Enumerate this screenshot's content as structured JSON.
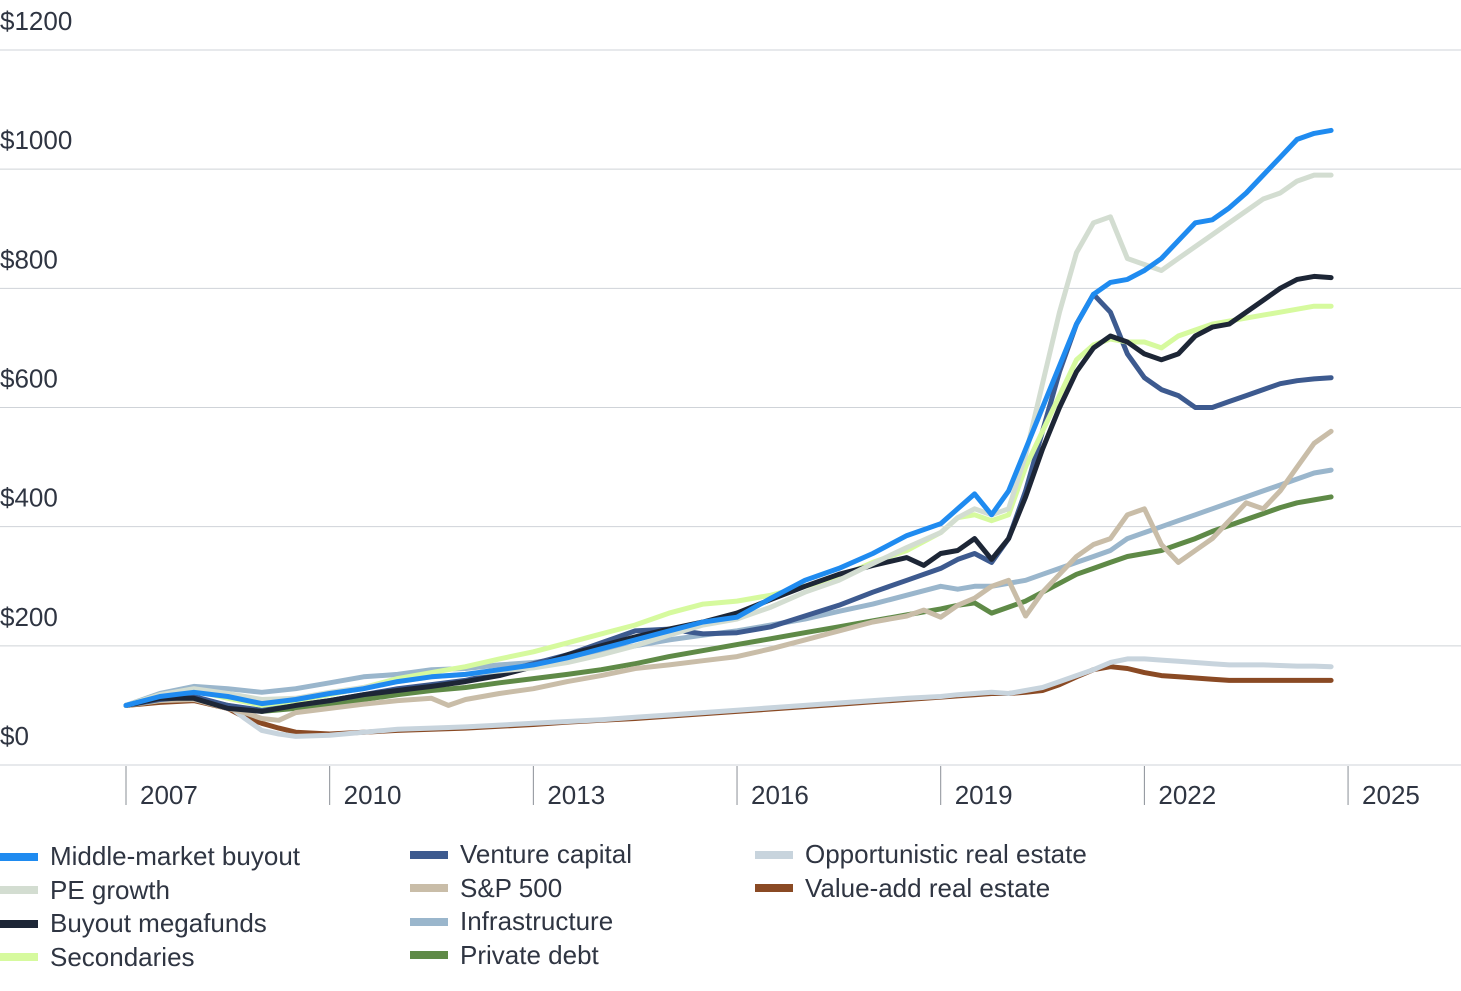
{
  "chart_data": {
    "type": "line",
    "title": "",
    "xlabel": "",
    "ylabel": "",
    "ylim": [
      0,
      1200
    ],
    "xlim": [
      2006.5,
      2025.0
    ],
    "y_ticks": [
      "$0",
      "$200",
      "$400",
      "$600",
      "$800",
      "$1000",
      "$1200"
    ],
    "y_tick_values": [
      0,
      200,
      400,
      600,
      800,
      1000,
      1200
    ],
    "x_ticks": [
      "2007",
      "2010",
      "2013",
      "2016",
      "2019",
      "2022",
      "2025"
    ],
    "x_tick_values": [
      2006.5,
      2009.5,
      2012.5,
      2015.5,
      2018.5,
      2021.5,
      2024.5
    ],
    "grid": "horizontal",
    "legend_position": "bottom",
    "series": [
      {
        "name": "Middle-market buyout",
        "color": "#1f8bf0",
        "x": [
          2006.5,
          2007,
          2007.5,
          2008,
          2008.5,
          2009,
          2009.5,
          2010,
          2010.5,
          2011,
          2011.5,
          2012,
          2012.5,
          2013,
          2013.5,
          2014,
          2014.5,
          2015,
          2015.5,
          2016,
          2016.5,
          2017,
          2017.5,
          2018,
          2018.5,
          2018.75,
          2019,
          2019.25,
          2019.5,
          2019.75,
          2020,
          2020.25,
          2020.5,
          2020.75,
          2021,
          2021.25,
          2021.5,
          2021.75,
          2022,
          2022.25,
          2022.5,
          2022.75,
          2023,
          2023.25,
          2023.5,
          2023.75,
          2024,
          2024.25
        ],
        "values": [
          100,
          115,
          122,
          115,
          103,
          110,
          120,
          128,
          140,
          148,
          152,
          160,
          168,
          180,
          195,
          210,
          225,
          240,
          248,
          280,
          310,
          330,
          355,
          385,
          405,
          430,
          455,
          420,
          460,
          530,
          600,
          670,
          740,
          790,
          810,
          815,
          830,
          850,
          880,
          910,
          915,
          935,
          960,
          990,
          1020,
          1050,
          1060,
          1065
        ]
      },
      {
        "name": "PE growth",
        "color": "#d3ddd1",
        "x": [
          2006.5,
          2007,
          2007.5,
          2008,
          2008.5,
          2009,
          2009.5,
          2010,
          2010.5,
          2011,
          2011.5,
          2012,
          2012.5,
          2013,
          2013.5,
          2014,
          2014.5,
          2015,
          2015.5,
          2016,
          2016.5,
          2017,
          2017.5,
          2018,
          2018.5,
          2018.75,
          2019,
          2019.25,
          2019.5,
          2019.75,
          2020,
          2020.25,
          2020.5,
          2020.75,
          2021,
          2021.25,
          2021.5,
          2021.75,
          2022,
          2022.25,
          2022.5,
          2022.75,
          2023,
          2023.25,
          2023.5,
          2023.75,
          2024,
          2024.25
        ],
        "values": [
          100,
          118,
          128,
          120,
          110,
          112,
          122,
          130,
          140,
          148,
          152,
          158,
          163,
          172,
          185,
          200,
          218,
          235,
          245,
          265,
          290,
          310,
          338,
          365,
          390,
          415,
          430,
          420,
          430,
          520,
          640,
          760,
          860,
          910,
          920,
          850,
          840,
          830,
          850,
          870,
          890,
          910,
          930,
          950,
          960,
          980,
          990,
          990
        ]
      },
      {
        "name": "Buyout megafunds",
        "color": "#1d2636",
        "x": [
          2006.5,
          2007,
          2007.5,
          2008,
          2008.5,
          2009,
          2009.5,
          2010,
          2010.5,
          2011,
          2011.5,
          2012,
          2012.5,
          2013,
          2013.5,
          2014,
          2014.5,
          2015,
          2015.5,
          2016,
          2016.5,
          2017,
          2017.5,
          2018,
          2018.25,
          2018.5,
          2018.75,
          2019,
          2019.25,
          2019.5,
          2019.75,
          2020,
          2020.25,
          2020.5,
          2020.75,
          2021,
          2021.25,
          2021.5,
          2021.75,
          2022,
          2022.25,
          2022.5,
          2022.75,
          2023,
          2023.25,
          2023.5,
          2023.75,
          2024,
          2024.25
        ],
        "values": [
          100,
          112,
          112,
          95,
          90,
          100,
          108,
          118,
          125,
          132,
          140,
          150,
          165,
          185,
          200,
          215,
          228,
          240,
          255,
          278,
          300,
          320,
          335,
          348,
          335,
          355,
          360,
          380,
          345,
          380,
          450,
          530,
          600,
          660,
          700,
          720,
          710,
          690,
          680,
          690,
          720,
          735,
          740,
          760,
          780,
          800,
          815,
          820,
          818
        ]
      },
      {
        "name": "Secondaries",
        "color": "#d6fa9e",
        "x": [
          2006.5,
          2007,
          2007.5,
          2008,
          2008.5,
          2009,
          2009.5,
          2010,
          2010.5,
          2011,
          2011.5,
          2012,
          2012.5,
          2013,
          2013.5,
          2014,
          2014.5,
          2015,
          2015.5,
          2016,
          2016.5,
          2017,
          2017.5,
          2018,
          2018.5,
          2018.75,
          2019,
          2019.25,
          2019.5,
          2019.75,
          2020,
          2020.25,
          2020.5,
          2020.75,
          2021,
          2021.25,
          2021.5,
          2021.75,
          2022,
          2022.25,
          2022.5,
          2022.75,
          2023,
          2023.25,
          2023.5,
          2023.75,
          2024,
          2024.25
        ],
        "values": [
          100,
          118,
          125,
          112,
          100,
          108,
          118,
          130,
          145,
          155,
          165,
          178,
          190,
          205,
          220,
          235,
          255,
          270,
          275,
          285,
          300,
          315,
          340,
          360,
          390,
          415,
          420,
          410,
          420,
          500,
          560,
          620,
          680,
          705,
          715,
          710,
          710,
          700,
          720,
          730,
          740,
          745,
          750,
          755,
          760,
          765,
          770,
          770
        ]
      },
      {
        "name": "Venture capital",
        "color": "#3d5a8f",
        "x": [
          2006.5,
          2007,
          2007.5,
          2008,
          2008.5,
          2009,
          2009.5,
          2010,
          2010.5,
          2011,
          2011.5,
          2012,
          2012.5,
          2013,
          2013.5,
          2014,
          2014.5,
          2015,
          2015.5,
          2016,
          2016.5,
          2017,
          2017.5,
          2018,
          2018.5,
          2018.75,
          2019,
          2019.25,
          2019.5,
          2019.75,
          2020,
          2020.25,
          2020.5,
          2020.75,
          2021,
          2021.25,
          2021.5,
          2021.75,
          2022,
          2022.25,
          2022.5,
          2022.75,
          2023,
          2023.25,
          2023.5,
          2023.75,
          2024,
          2024.25
        ],
        "values": [
          100,
          110,
          115,
          100,
          92,
          100,
          108,
          118,
          128,
          135,
          142,
          155,
          170,
          185,
          205,
          225,
          228,
          220,
          222,
          232,
          250,
          268,
          290,
          310,
          330,
          345,
          355,
          340,
          380,
          460,
          560,
          660,
          740,
          790,
          760,
          690,
          650,
          630,
          620,
          600,
          600,
          610,
          620,
          630,
          640,
          645,
          648,
          650
        ]
      },
      {
        "name": "S&P 500",
        "color": "#c9bda8",
        "x": [
          2006.5,
          2007,
          2007.5,
          2008,
          2008.25,
          2008.5,
          2008.75,
          2009,
          2009.5,
          2010,
          2010.5,
          2011,
          2011.25,
          2011.5,
          2012,
          2012.5,
          2013,
          2013.5,
          2014,
          2014.5,
          2015,
          2015.5,
          2016,
          2016.5,
          2017,
          2017.5,
          2018,
          2018.25,
          2018.5,
          2018.75,
          2019,
          2019.25,
          2019.5,
          2019.75,
          2020,
          2020.25,
          2020.5,
          2020.75,
          2021,
          2021.25,
          2021.5,
          2021.75,
          2022,
          2022.25,
          2022.5,
          2022.75,
          2023,
          2023.25,
          2023.5,
          2023.75,
          2024,
          2024.25
        ],
        "values": [
          100,
          108,
          110,
          95,
          88,
          78,
          75,
          88,
          95,
          102,
          108,
          112,
          100,
          110,
          120,
          128,
          140,
          150,
          162,
          168,
          175,
          182,
          195,
          210,
          225,
          240,
          250,
          260,
          248,
          268,
          280,
          300,
          310,
          250,
          290,
          320,
          350,
          370,
          380,
          420,
          430,
          370,
          340,
          360,
          380,
          410,
          440,
          430,
          460,
          500,
          540,
          560
        ]
      },
      {
        "name": "Infrastructure",
        "color": "#9ab6cc",
        "x": [
          2006.5,
          2007,
          2007.5,
          2008,
          2008.5,
          2009,
          2009.5,
          2010,
          2010.5,
          2011,
          2011.5,
          2012,
          2012.5,
          2013,
          2013.5,
          2014,
          2014.5,
          2015,
          2015.5,
          2016,
          2016.5,
          2017,
          2017.5,
          2018,
          2018.5,
          2018.75,
          2019,
          2019.25,
          2019.5,
          2019.75,
          2020,
          2020.25,
          2020.5,
          2020.75,
          2021,
          2021.25,
          2021.5,
          2021.75,
          2022,
          2022.25,
          2022.5,
          2022.75,
          2023,
          2023.25,
          2023.5,
          2023.75,
          2024,
          2024.25
        ],
        "values": [
          100,
          120,
          132,
          128,
          122,
          128,
          138,
          148,
          152,
          160,
          162,
          168,
          172,
          180,
          190,
          200,
          210,
          218,
          225,
          235,
          245,
          258,
          270,
          285,
          300,
          295,
          300,
          300,
          305,
          310,
          320,
          330,
          340,
          350,
          360,
          380,
          390,
          400,
          410,
          420,
          430,
          440,
          450,
          460,
          470,
          480,
          490,
          495
        ]
      },
      {
        "name": "Private debt",
        "color": "#5f8a47",
        "x": [
          2006.5,
          2007,
          2007.5,
          2008,
          2008.5,
          2009,
          2009.5,
          2010,
          2010.5,
          2011,
          2011.5,
          2012,
          2012.5,
          2013,
          2013.5,
          2014,
          2014.5,
          2015,
          2015.5,
          2016,
          2016.5,
          2017,
          2017.5,
          2018,
          2018.5,
          2018.75,
          2019,
          2019.25,
          2019.5,
          2019.75,
          2020,
          2020.25,
          2020.5,
          2020.75,
          2021,
          2021.25,
          2021.5,
          2021.75,
          2022,
          2022.25,
          2022.5,
          2022.75,
          2023,
          2023.25,
          2023.5,
          2023.75,
          2024,
          2024.25
        ],
        "values": [
          100,
          108,
          112,
          100,
          90,
          95,
          102,
          110,
          118,
          125,
          130,
          138,
          145,
          152,
          160,
          170,
          182,
          192,
          202,
          212,
          222,
          232,
          242,
          252,
          262,
          268,
          272,
          255,
          265,
          275,
          290,
          305,
          320,
          330,
          340,
          350,
          355,
          360,
          370,
          380,
          392,
          402,
          412,
          422,
          432,
          440,
          445,
          450
        ]
      },
      {
        "name": "Opportunistic real estate",
        "color": "#c8d4dd",
        "x": [
          2006.5,
          2007,
          2007.5,
          2008,
          2008.25,
          2008.5,
          2008.75,
          2009,
          2009.5,
          2010,
          2010.5,
          2011,
          2011.5,
          2012,
          2012.5,
          2013,
          2013.5,
          2014,
          2014.5,
          2015,
          2015.5,
          2016,
          2016.5,
          2017,
          2017.5,
          2018,
          2018.5,
          2018.75,
          2019,
          2019.25,
          2019.5,
          2019.75,
          2020,
          2020.25,
          2020.5,
          2020.75,
          2021,
          2021.25,
          2021.5,
          2021.75,
          2022,
          2022.25,
          2022.5,
          2022.75,
          2023,
          2023.25,
          2023.5,
          2023.75,
          2024,
          2024.25
        ],
        "values": [
          100,
          110,
          112,
          100,
          78,
          58,
          52,
          48,
          50,
          55,
          60,
          62,
          64,
          67,
          70,
          73,
          76,
          80,
          84,
          88,
          92,
          96,
          100,
          104,
          108,
          112,
          115,
          118,
          120,
          122,
          120,
          125,
          130,
          140,
          150,
          160,
          172,
          178,
          178,
          176,
          174,
          172,
          170,
          168,
          168,
          168,
          167,
          166,
          166,
          165
        ]
      },
      {
        "name": "Value-add real estate",
        "color": "#8a4a24",
        "x": [
          2006.5,
          2007,
          2007.5,
          2008,
          2008.25,
          2008.5,
          2008.75,
          2009,
          2009.5,
          2010,
          2010.5,
          2011,
          2011.5,
          2012,
          2012.5,
          2013,
          2013.5,
          2014,
          2014.5,
          2015,
          2015.5,
          2016,
          2016.5,
          2017,
          2017.5,
          2018,
          2018.5,
          2018.75,
          2019,
          2019.25,
          2019.5,
          2019.75,
          2020,
          2020.25,
          2020.5,
          2020.75,
          2021,
          2021.25,
          2021.5,
          2021.75,
          2022,
          2022.25,
          2022.5,
          2022.75,
          2023,
          2023.25,
          2023.5,
          2023.75,
          2024,
          2024.25
        ],
        "values": [
          100,
          105,
          108,
          95,
          80,
          70,
          62,
          55,
          52,
          55,
          58,
          60,
          62,
          65,
          68,
          72,
          75,
          78,
          82,
          86,
          90,
          94,
          98,
          102,
          106,
          110,
          114,
          116,
          118,
          120,
          120,
          122,
          125,
          135,
          148,
          160,
          165,
          162,
          155,
          150,
          148,
          146,
          144,
          142,
          142,
          142,
          142,
          142,
          142,
          142
        ]
      }
    ]
  },
  "legend": {
    "col1": [
      "Middle-market buyout",
      "PE growth",
      "Buyout megafunds",
      "Secondaries"
    ],
    "col2": [
      "Venture capital",
      "S&P 500",
      "Infrastructure",
      "Private debt"
    ],
    "col3": [
      "Opportunistic real estate",
      "Value-add real estate"
    ]
  }
}
